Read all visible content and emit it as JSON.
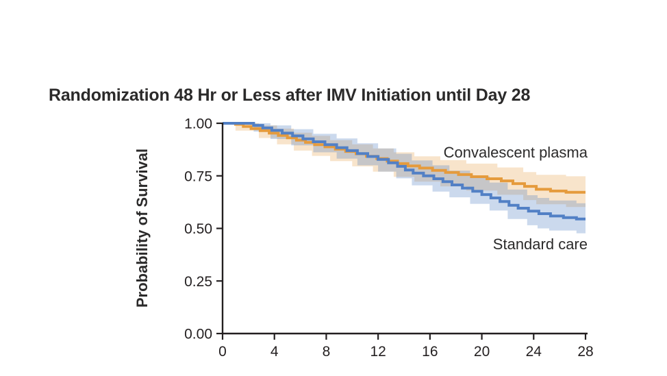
{
  "figure": {
    "title": "Randomization 48 Hr or Less after IMV Initiation until Day 28",
    "background_color": "#ffffff",
    "text_color": "#231f20",
    "axis_color": "#231f20"
  },
  "chart_data": {
    "type": "line",
    "variant": "kaplan_meier_step_curves_with_confidence_bands",
    "title": "Randomization 48 Hr or Less after IMV Initiation until Day 28",
    "xlabel": "",
    "ylabel": "Probability of Survival",
    "xlim": [
      0,
      28
    ],
    "ylim": [
      0.0,
      1.0
    ],
    "x_ticks": [
      "0",
      "4",
      "8",
      "12",
      "16",
      "20",
      "24",
      "28"
    ],
    "x_tick_values": [
      0,
      4,
      8,
      12,
      16,
      20,
      24,
      28
    ],
    "y_ticks": [
      "1.00",
      "0.75",
      "0.50",
      "0.25",
      "0.00"
    ],
    "y_tick_values": [
      1.0,
      0.75,
      0.5,
      0.25,
      0.0
    ],
    "grid": false,
    "legend_position": "inline-annotations-right",
    "series": [
      {
        "name": "Convalescent plasma",
        "color": "#e59b3d",
        "band_color": "rgba(229,155,61,0.27)",
        "end_value": 0.67,
        "steps": [
          [
            0,
            1.0
          ],
          [
            1.0,
            0.995
          ],
          [
            1.6,
            0.985
          ],
          [
            2.2,
            0.975
          ],
          [
            2.9,
            0.965
          ],
          [
            3.6,
            0.953
          ],
          [
            4.3,
            0.942
          ],
          [
            5.0,
            0.931
          ],
          [
            5.7,
            0.92
          ],
          [
            6.4,
            0.909
          ],
          [
            7.1,
            0.898
          ],
          [
            7.9,
            0.888
          ],
          [
            8.7,
            0.877
          ],
          [
            9.5,
            0.866
          ],
          [
            10.3,
            0.855
          ],
          [
            11.1,
            0.843
          ],
          [
            11.9,
            0.832
          ],
          [
            12.7,
            0.82
          ],
          [
            13.5,
            0.808
          ],
          [
            14.3,
            0.797
          ],
          [
            15.2,
            0.787
          ],
          [
            16.2,
            0.776
          ],
          [
            17.2,
            0.766
          ],
          [
            18.2,
            0.756
          ],
          [
            19.2,
            0.746
          ],
          [
            20.4,
            0.736
          ],
          [
            21.5,
            0.726
          ],
          [
            22.4,
            0.713
          ],
          [
            23.3,
            0.7
          ],
          [
            24.2,
            0.686
          ],
          [
            25.3,
            0.678
          ],
          [
            26.5,
            0.672
          ]
        ],
        "band": [
          [
            0,
            1.0,
            1.0
          ],
          [
            1.0,
            0.965,
            1.0
          ],
          [
            2.8,
            0.93,
            0.99
          ],
          [
            4.2,
            0.9,
            0.975
          ],
          [
            5.5,
            0.87,
            0.955
          ],
          [
            6.9,
            0.845,
            0.94
          ],
          [
            8.3,
            0.82,
            0.92
          ],
          [
            10.0,
            0.795,
            0.9
          ],
          [
            11.6,
            0.77,
            0.88
          ],
          [
            13.2,
            0.745,
            0.862
          ],
          [
            14.8,
            0.722,
            0.843
          ],
          [
            16.8,
            0.7,
            0.825
          ],
          [
            18.8,
            0.68,
            0.808
          ],
          [
            21.2,
            0.66,
            0.79
          ],
          [
            23.2,
            0.635,
            0.768
          ],
          [
            24.2,
            0.615,
            0.755
          ],
          [
            26.5,
            0.602,
            0.748
          ]
        ]
      },
      {
        "name": "Standard care",
        "color": "#5280c5",
        "band_color": "rgba(82,128,197,0.30)",
        "end_value": 0.54,
        "steps": [
          [
            0,
            1.0
          ],
          [
            2.4,
            0.99
          ],
          [
            3.1,
            0.978
          ],
          [
            3.8,
            0.966
          ],
          [
            4.6,
            0.953
          ],
          [
            5.4,
            0.94
          ],
          [
            6.2,
            0.926
          ],
          [
            7.0,
            0.912
          ],
          [
            7.9,
            0.898
          ],
          [
            8.8,
            0.884
          ],
          [
            9.6,
            0.87
          ],
          [
            10.4,
            0.856
          ],
          [
            11.2,
            0.842
          ],
          [
            12.0,
            0.828
          ],
          [
            12.8,
            0.812
          ],
          [
            13.5,
            0.795
          ],
          [
            14.1,
            0.778
          ],
          [
            14.7,
            0.763
          ],
          [
            15.5,
            0.75
          ],
          [
            16.3,
            0.736
          ],
          [
            17.0,
            0.722
          ],
          [
            17.7,
            0.707
          ],
          [
            18.5,
            0.692
          ],
          [
            19.3,
            0.677
          ],
          [
            20.0,
            0.661
          ],
          [
            20.7,
            0.645
          ],
          [
            21.4,
            0.628
          ],
          [
            22.1,
            0.61
          ],
          [
            22.8,
            0.596
          ],
          [
            23.6,
            0.582
          ],
          [
            24.4,
            0.57
          ],
          [
            25.3,
            0.559
          ],
          [
            26.3,
            0.551
          ],
          [
            27.3,
            0.545
          ]
        ],
        "band": [
          [
            0,
            1.0,
            1.0
          ],
          [
            2.4,
            0.96,
            1.0
          ],
          [
            3.7,
            0.925,
            0.99
          ],
          [
            5.3,
            0.895,
            0.972
          ],
          [
            7.0,
            0.862,
            0.95
          ],
          [
            8.8,
            0.832,
            0.928
          ],
          [
            10.4,
            0.8,
            0.905
          ],
          [
            12.0,
            0.77,
            0.88
          ],
          [
            13.4,
            0.738,
            0.855
          ],
          [
            14.6,
            0.705,
            0.823
          ],
          [
            16.2,
            0.675,
            0.8
          ],
          [
            17.5,
            0.648,
            0.775
          ],
          [
            19.1,
            0.617,
            0.748
          ],
          [
            20.6,
            0.585,
            0.718
          ],
          [
            22.0,
            0.545,
            0.685
          ],
          [
            23.5,
            0.515,
            0.658
          ],
          [
            24.3,
            0.5,
            0.645
          ],
          [
            25.2,
            0.49,
            0.633
          ],
          [
            27.3,
            0.477,
            0.62
          ]
        ]
      }
    ]
  }
}
